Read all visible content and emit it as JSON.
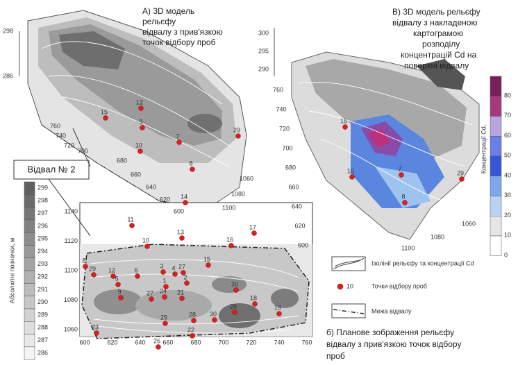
{
  "panel_a": {
    "title": [
      "А) 3D модель",
      "рельєфу",
      "відвалу з прив'язкою",
      "точок відбору проб"
    ],
    "z_ticks": [
      "298",
      "286"
    ],
    "axis_ticks": [
      "760",
      "740",
      "720",
      "700",
      "680",
      "660",
      "640",
      "620",
      "600",
      "1100",
      "1080",
      "1060"
    ],
    "points": [
      "15",
      "12",
      "9",
      "10",
      "7",
      "8",
      "29",
      "14"
    ]
  },
  "panel_b": {
    "title": [
      "В) 3D модель рельєфу",
      "відвалу з накладеною",
      "картограмою",
      "розподілу",
      "концентрацій Cd на",
      "поверхні відвалу"
    ],
    "z_ticks": [
      "300",
      "295",
      "290"
    ],
    "y_ticks": [
      "760",
      "740",
      "720",
      "700",
      "680",
      "660",
      "640",
      "620",
      "600"
    ],
    "x_ticks": [
      "1100",
      "1080",
      "1060"
    ],
    "points": [
      "15",
      "7",
      "29",
      "8",
      "10"
    ],
    "colorbar": {
      "label": "Концентрації Cd,",
      "ticks": [
        "80",
        "70",
        "60",
        "50",
        "40",
        "30",
        "20",
        "10",
        "0"
      ]
    }
  },
  "panel_c": {
    "callout": "Відвал № 2",
    "colorbar": {
      "label": "Абсолютні позначки, м",
      "ticks": [
        "299",
        "298",
        "297",
        "296",
        "295",
        "294",
        "293",
        "292",
        "291",
        "290",
        "289",
        "288",
        "287",
        "286"
      ]
    },
    "x_ticks": [
      "600",
      "620",
      "640",
      "660",
      "680",
      "700",
      "720",
      "740",
      "760"
    ],
    "y_ticks": [
      "1140",
      "1120",
      "1100",
      "1080",
      "1060"
    ],
    "points": [
      "11",
      "13",
      "17",
      "10",
      "16",
      "8",
      "15",
      "29",
      "12",
      "6",
      "3",
      "4",
      "27",
      "5",
      "2",
      "1",
      "20",
      "9",
      "27",
      "24",
      "21",
      "18",
      "19",
      "26",
      "25",
      "28",
      "30",
      "22",
      "23",
      "26"
    ]
  },
  "legend": {
    "items": [
      {
        "label": "Ізолінії рельєфу та концентрації Cd"
      },
      {
        "marker": "10",
        "label": "Точки відбору проб"
      },
      {
        "label": "Межа відвалу"
      }
    ]
  },
  "caption": [
    "б) Планове зображення рельєфу",
    "відвалу з прив'язкою точок відбору",
    "проб"
  ]
}
